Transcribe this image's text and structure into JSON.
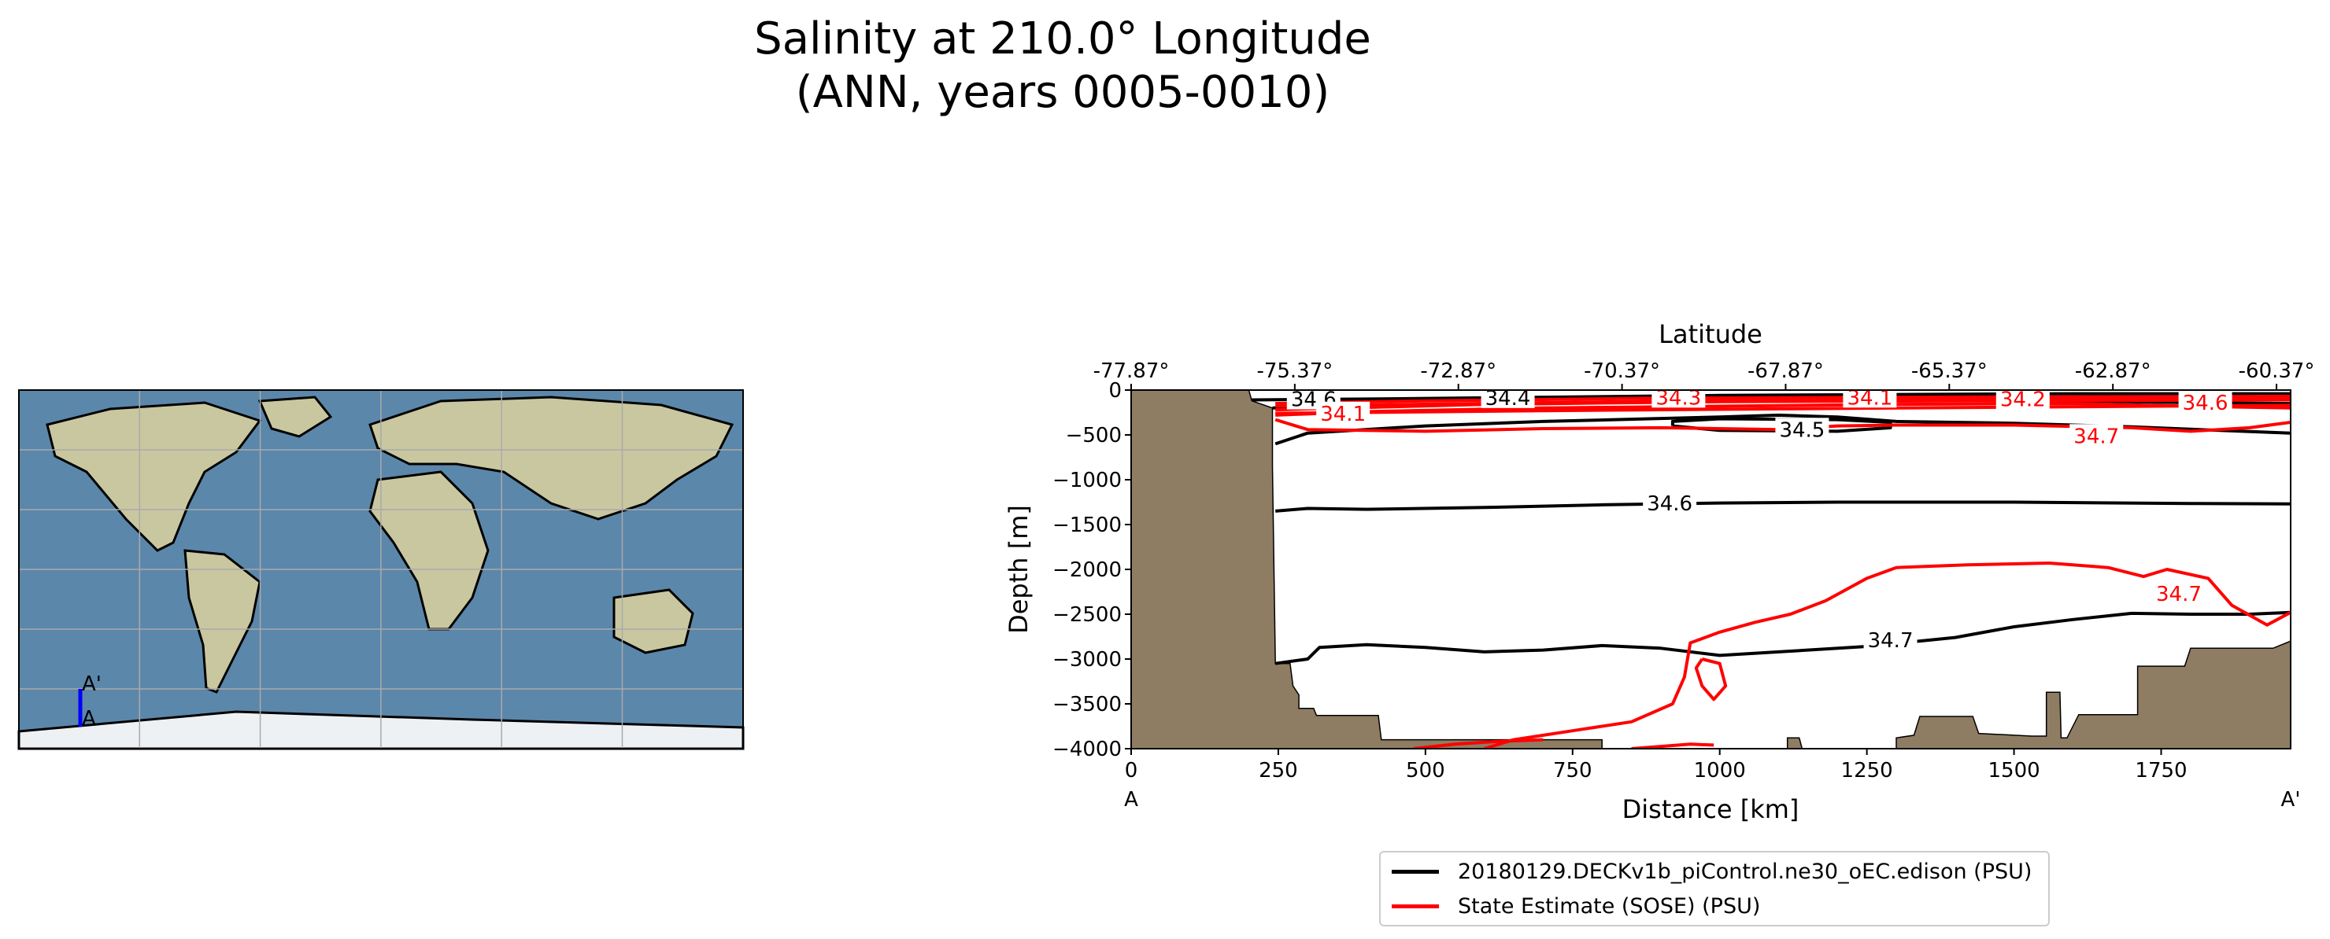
{
  "title": {
    "line1": "Salinity at 210.0° Longitude",
    "line2": "(ANN, years 0005-0010)"
  },
  "map": {
    "point_start_label": "A",
    "point_end_label": "A'",
    "transect_color": "#0000ff",
    "ocean_color": "#5b87aa",
    "land_color": "#c9c7a0",
    "ice_color": "#eef1f4"
  },
  "chart_data": {
    "type": "contour",
    "xlabel": "Distance [km]",
    "ylabel": "Depth [m]",
    "top_xlabel": "Latitude",
    "xlim": [
      0,
      1970
    ],
    "ylim": [
      -4000,
      0
    ],
    "x_ticks": [
      0,
      250,
      500,
      750,
      1000,
      1250,
      1500,
      1750
    ],
    "y_ticks": [
      0,
      -500,
      -1000,
      -1500,
      -2000,
      -2500,
      -3000,
      -3500,
      -4000
    ],
    "top_ticks": {
      "positions_km": [
        0,
        278,
        556,
        834,
        1112,
        1390,
        1668,
        1946
      ],
      "labels": [
        "-77.87°",
        "-75.37°",
        "-72.87°",
        "-70.37°",
        "-67.87°",
        "-65.37°",
        "-62.87°",
        "-60.37°"
      ]
    },
    "endpoint_labels": {
      "start": "A",
      "end": "A'"
    },
    "bathymetry_color": "#8e7d63",
    "bathymetry": [
      [
        0,
        0
      ],
      [
        200,
        0
      ],
      [
        205,
        -120
      ],
      [
        240,
        -200
      ],
      [
        240,
        -850
      ],
      [
        245,
        -3050
      ],
      [
        270,
        -3050
      ],
      [
        275,
        -3300
      ],
      [
        285,
        -3400
      ],
      [
        285,
        -3550
      ],
      [
        310,
        -3550
      ],
      [
        315,
        -3630
      ],
      [
        420,
        -3630
      ],
      [
        425,
        -3900
      ],
      [
        520,
        -3900
      ],
      [
        600,
        -3900
      ],
      [
        800,
        -3900
      ],
      [
        800,
        -4000
      ],
      [
        1115,
        -4000
      ],
      [
        1115,
        -3880
      ],
      [
        1135,
        -3880
      ],
      [
        1140,
        -4000
      ],
      [
        1300,
        -4000
      ],
      [
        1300,
        -3880
      ],
      [
        1330,
        -3850
      ],
      [
        1340,
        -3640
      ],
      [
        1430,
        -3640
      ],
      [
        1440,
        -3830
      ],
      [
        1530,
        -3860
      ],
      [
        1555,
        -3860
      ],
      [
        1555,
        -3370
      ],
      [
        1578,
        -3370
      ],
      [
        1580,
        -3880
      ],
      [
        1590,
        -3880
      ],
      [
        1610,
        -3620
      ],
      [
        1710,
        -3620
      ],
      [
        1710,
        -3080
      ],
      [
        1790,
        -3080
      ],
      [
        1800,
        -2880
      ],
      [
        1940,
        -2880
      ],
      [
        1970,
        -2800
      ],
      [
        1970,
        -4000
      ],
      [
        0,
        -4000
      ]
    ],
    "series": [
      {
        "name": "20180129.DECKv1b_piControl.ne30_oEC.edison (PSU)",
        "color": "#000000",
        "contours": [
          {
            "level": "34.6",
            "label_at": [
              310,
              -110
            ],
            "points": [
              [
                205,
                -110
              ],
              [
                400,
                -100
              ],
              [
                700,
                -80
              ],
              [
                1000,
                -60
              ],
              [
                1300,
                -50
              ],
              [
                1600,
                -40
              ],
              [
                1970,
                -40
              ]
            ]
          },
          {
            "level": "34.4",
            "label_at": [
              640,
              -95
            ],
            "points": [
              [
                240,
                -200
              ],
              [
                500,
                -170
              ],
              [
                700,
                -150
              ],
              [
                900,
                -130
              ],
              [
                1200,
                -120
              ],
              [
                1500,
                -110
              ],
              [
                1800,
                -140
              ],
              [
                1970,
                -150
              ]
            ]
          },
          {
            "level": "34.5",
            "label_at": [
              1140,
              -450
            ],
            "points": [
              [
                245,
                -600
              ],
              [
                300,
                -480
              ],
              [
                500,
                -400
              ],
              [
                700,
                -350
              ],
              [
                880,
                -320
              ],
              [
                1000,
                -300
              ],
              [
                1100,
                -280
              ],
              [
                1200,
                -300
              ],
              [
                1300,
                -350
              ],
              [
                1500,
                -370
              ],
              [
                1700,
                -410
              ],
              [
                1850,
                -450
              ],
              [
                1970,
                -480
              ]
            ]
          },
          {
            "level": "34.5 loop",
            "label_at": null,
            "points": [
              [
                920,
                -400
              ],
              [
                1000,
                -450
              ],
              [
                1200,
                -460
              ],
              [
                1290,
                -420
              ],
              [
                1290,
                -360
              ],
              [
                1200,
                -330
              ],
              [
                1000,
                -320
              ],
              [
                920,
                -350
              ],
              [
                920,
                -400
              ]
            ]
          },
          {
            "level": "34.6",
            "label_at": [
              915,
              -1270
            ],
            "points": [
              [
                245,
                -1350
              ],
              [
                300,
                -1320
              ],
              [
                400,
                -1330
              ],
              [
                600,
                -1310
              ],
              [
                800,
                -1280
              ],
              [
                1000,
                -1260
              ],
              [
                1200,
                -1250
              ],
              [
                1500,
                -1250
              ],
              [
                1800,
                -1265
              ],
              [
                1970,
                -1270
              ]
            ]
          },
          {
            "level": "34.7",
            "label_at": [
              1290,
              -2800
            ],
            "points": [
              [
                245,
                -3050
              ],
              [
                300,
                -3000
              ],
              [
                320,
                -2870
              ],
              [
                400,
                -2840
              ],
              [
                500,
                -2870
              ],
              [
                600,
                -2920
              ],
              [
                700,
                -2900
              ],
              [
                800,
                -2850
              ],
              [
                900,
                -2880
              ],
              [
                1000,
                -2960
              ],
              [
                1100,
                -2920
              ],
              [
                1250,
                -2860
              ],
              [
                1400,
                -2760
              ],
              [
                1500,
                -2640
              ],
              [
                1600,
                -2560
              ],
              [
                1700,
                -2490
              ],
              [
                1800,
                -2500
              ],
              [
                1900,
                -2500
              ],
              [
                1970,
                -2480
              ]
            ]
          }
        ]
      },
      {
        "name": "State Estimate (SOSE) (PSU)",
        "color": "#ff0000",
        "contours": [
          {
            "level": "34.1",
            "label_at": [
              360,
              -270
            ],
            "points": [
              [
                245,
                -280
              ],
              [
                400,
                -240
              ],
              [
                700,
                -200
              ],
              [
                1000,
                -180
              ],
              [
                1300,
                -160
              ],
              [
                1600,
                -150
              ],
              [
                1800,
                -180
              ],
              [
                1970,
                -200
              ]
            ]
          },
          {
            "level": "34.3",
            "label_at": [
              930,
              -90
            ],
            "points": [
              [
                245,
                -150
              ],
              [
                500,
                -120
              ],
              [
                900,
                -90
              ],
              [
                1300,
                -80
              ],
              [
                1970,
                -70
              ]
            ]
          },
          {
            "level": "34.1",
            "label_at": [
              1255,
              -90
            ],
            "points": [
              [
                245,
                -220
              ],
              [
                600,
                -160
              ],
              [
                1000,
                -130
              ],
              [
                1400,
                -120
              ],
              [
                1970,
                -110
              ]
            ]
          },
          {
            "level": "34.2",
            "label_at": [
              1515,
              -110
            ],
            "points": [
              [
                245,
                -180
              ],
              [
                700,
                -140
              ],
              [
                1100,
                -110
              ],
              [
                1500,
                -100
              ],
              [
                1970,
                -90
              ]
            ]
          },
          {
            "level": "34.6",
            "label_at": [
              1825,
              -150
            ],
            "points": [
              [
                245,
                -260
              ],
              [
                700,
                -230
              ],
              [
                1100,
                -210
              ],
              [
                1500,
                -190
              ],
              [
                1970,
                -170
              ]
            ]
          },
          {
            "level": "34.7",
            "label_at": [
              1640,
              -520
            ],
            "points": [
              [
                245,
                -330
              ],
              [
                300,
                -440
              ],
              [
                500,
                -460
              ],
              [
                700,
                -430
              ],
              [
                900,
                -420
              ],
              [
                1100,
                -440
              ],
              [
                1200,
                -400
              ],
              [
                1300,
                -390
              ],
              [
                1500,
                -390
              ],
              [
                1700,
                -420
              ],
              [
                1800,
                -460
              ],
              [
                1900,
                -420
              ],
              [
                1970,
                -360
              ]
            ]
          },
          {
            "level": "34.7",
            "label_at": [
              1780,
              -2280
            ],
            "points": [
              [
                600,
                -4000
              ],
              [
                650,
                -3900
              ],
              [
                750,
                -3800
              ],
              [
                850,
                -3700
              ],
              [
                920,
                -3500
              ],
              [
                940,
                -3200
              ],
              [
                950,
                -2820
              ],
              [
                1000,
                -2700
              ],
              [
                1060,
                -2590
              ],
              [
                1120,
                -2500
              ],
              [
                1180,
                -2350
              ],
              [
                1250,
                -2100
              ],
              [
                1300,
                -1980
              ],
              [
                1420,
                -1950
              ],
              [
                1560,
                -1930
              ],
              [
                1660,
                -1980
              ],
              [
                1720,
                -2080
              ],
              [
                1760,
                -2000
              ],
              [
                1830,
                -2100
              ],
              [
                1870,
                -2400
              ],
              [
                1930,
                -2620
              ],
              [
                1970,
                -2480
              ]
            ]
          },
          {
            "level": "34.7 loop",
            "label_at": null,
            "points": [
              [
                970,
                -3000
              ],
              [
                1000,
                -3050
              ],
              [
                1010,
                -3300
              ],
              [
                990,
                -3450
              ],
              [
                970,
                -3300
              ],
              [
                960,
                -3100
              ],
              [
                970,
                -3000
              ]
            ]
          },
          {
            "level": "34.7 bottom",
            "label_at": null,
            "points": [
              [
                480,
                -4000
              ],
              [
                550,
                -3950
              ],
              [
                620,
                -3920
              ],
              [
                700,
                -3900
              ]
            ]
          },
          {
            "level": "34.7 bottom2",
            "label_at": null,
            "points": [
              [
                850,
                -4000
              ],
              [
                950,
                -3950
              ],
              [
                990,
                -3960
              ]
            ]
          }
        ]
      }
    ]
  },
  "legend": {
    "items": [
      {
        "label": "20180129.DECKv1b_piControl.ne30_oEC.edison (PSU)",
        "color": "#000000"
      },
      {
        "label": "State Estimate (SOSE) (PSU)",
        "color": "#ff0000"
      }
    ]
  }
}
